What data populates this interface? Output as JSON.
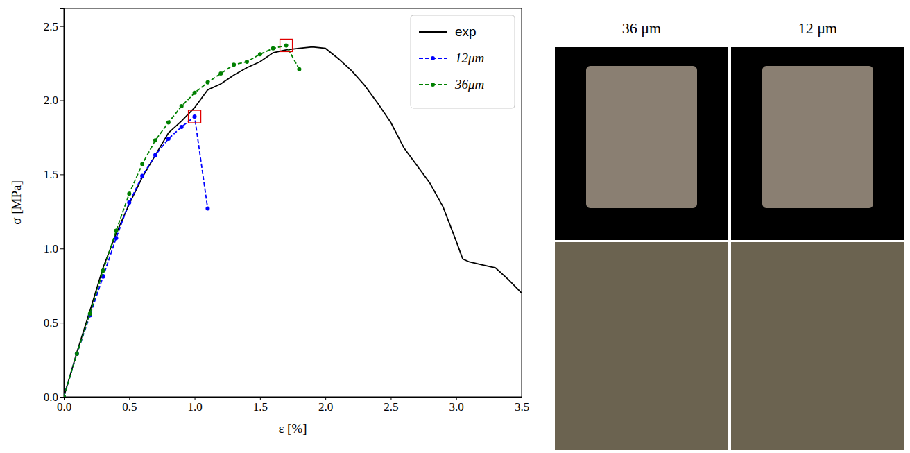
{
  "chart_data": {
    "type": "line",
    "x_label": "ε [%]",
    "y_label": "σ [MPa]",
    "xlim": [
      0,
      3.5
    ],
    "ylim": [
      0,
      2.62
    ],
    "xticks": [
      {
        "value": 0,
        "label": "0.0"
      },
      {
        "value": 0.5,
        "label": "0.5"
      },
      {
        "value": 1,
        "label": "1.0"
      },
      {
        "value": 1.5,
        "label": "1.5"
      },
      {
        "value": 2,
        "label": "2.0"
      },
      {
        "value": 2.5,
        "label": "2.5"
      },
      {
        "value": 3,
        "label": "3.0"
      },
      {
        "value": 3.5,
        "label": "3.5"
      }
    ],
    "yticks": [
      {
        "value": 0,
        "label": "0.0"
      },
      {
        "value": 0.5,
        "label": "0.5"
      },
      {
        "value": 1,
        "label": "1.0"
      },
      {
        "value": 1.5,
        "label": "1.5"
      },
      {
        "value": 2,
        "label": "2.0"
      },
      {
        "value": 2.5,
        "label": "2.5"
      }
    ],
    "grid": false,
    "legend": "upper right",
    "series": [
      {
        "name": "exp",
        "color": "#000000",
        "line_style": "solid",
        "marker": "none",
        "x": [
          0,
          0.1,
          0.2,
          0.3,
          0.4,
          0.5,
          0.6,
          0.7,
          0.8,
          0.9,
          1.0,
          1.1,
          1.2,
          1.3,
          1.4,
          1.5,
          1.6,
          1.7,
          1.8,
          1.9,
          2.0,
          2.1,
          2.2,
          2.3,
          2.4,
          2.5,
          2.6,
          2.7,
          2.8,
          2.9,
          3.0,
          3.05,
          3.1,
          3.2,
          3.3,
          3.4,
          3.5
        ],
        "values": [
          0,
          0.3,
          0.58,
          0.87,
          1.1,
          1.3,
          1.48,
          1.63,
          1.78,
          1.86,
          1.95,
          2.07,
          2.11,
          2.17,
          2.22,
          2.26,
          2.32,
          2.34,
          2.35,
          2.36,
          2.35,
          2.28,
          2.2,
          2.1,
          1.98,
          1.85,
          1.68,
          1.56,
          1.44,
          1.28,
          1.05,
          0.93,
          0.91,
          0.89,
          0.87,
          0.79,
          0.7
        ]
      },
      {
        "name": "12μm",
        "color": "#0000ff",
        "line_style": "dashed",
        "marker": "dot",
        "x": [
          0,
          0.1,
          0.2,
          0.3,
          0.4,
          0.5,
          0.6,
          0.7,
          0.8,
          0.9,
          1.0,
          1.1
        ],
        "values": [
          0,
          0.29,
          0.55,
          0.81,
          1.07,
          1.31,
          1.49,
          1.63,
          1.74,
          1.82,
          1.89,
          1.27
        ],
        "highlight": {
          "x": 1.0,
          "y": 1.89
        }
      },
      {
        "name": "36μm",
        "color": "#008000",
        "line_style": "dashed",
        "marker": "dot",
        "x": [
          0,
          0.1,
          0.2,
          0.3,
          0.4,
          0.5,
          0.6,
          0.7,
          0.8,
          0.9,
          1.0,
          1.1,
          1.2,
          1.3,
          1.4,
          1.5,
          1.6,
          1.7,
          1.8
        ],
        "values": [
          0,
          0.29,
          0.56,
          0.85,
          1.12,
          1.37,
          1.57,
          1.73,
          1.85,
          1.96,
          2.05,
          2.12,
          2.18,
          2.24,
          2.26,
          2.31,
          2.35,
          2.37,
          2.21
        ],
        "highlight": {
          "x": 1.7,
          "y": 2.37
        }
      }
    ]
  },
  "images": {
    "titles": [
      "36 μm",
      "12 μm"
    ]
  }
}
